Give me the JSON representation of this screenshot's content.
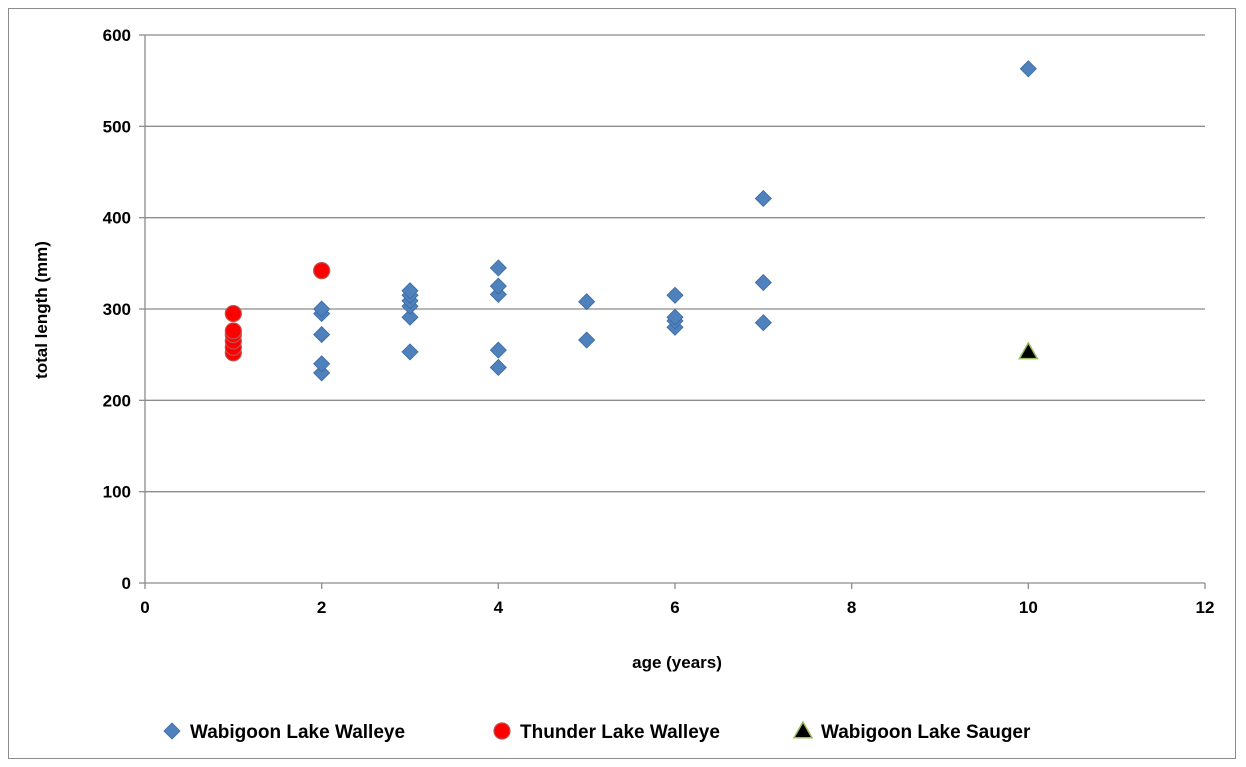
{
  "chart_data": {
    "type": "scatter",
    "title": "",
    "xlabel": "age (years)",
    "ylabel": "total length (mm)",
    "xlim": [
      0,
      12
    ],
    "ylim": [
      0,
      600
    ],
    "xticks": [
      0,
      2,
      4,
      6,
      8,
      10,
      12
    ],
    "yticks": [
      0,
      100,
      200,
      300,
      400,
      500,
      600
    ],
    "grid": "horizontal",
    "legend_position": "bottom",
    "series": [
      {
        "name": "Wabigoon Lake Walleye",
        "marker": "diamond",
        "color": "#4f81bd",
        "points": [
          [
            2,
            230
          ],
          [
            2,
            240
          ],
          [
            2,
            272
          ],
          [
            2,
            295
          ],
          [
            2,
            300
          ],
          [
            3,
            253
          ],
          [
            3,
            291
          ],
          [
            3,
            303
          ],
          [
            3,
            309
          ],
          [
            3,
            315
          ],
          [
            3,
            320
          ],
          [
            4,
            236
          ],
          [
            4,
            255
          ],
          [
            4,
            316
          ],
          [
            4,
            325
          ],
          [
            4,
            345
          ],
          [
            5,
            266
          ],
          [
            5,
            308
          ],
          [
            6,
            280
          ],
          [
            6,
            287
          ],
          [
            6,
            291
          ],
          [
            6,
            315
          ],
          [
            7,
            285
          ],
          [
            7,
            329
          ],
          [
            7,
            421
          ],
          [
            10,
            563
          ]
        ]
      },
      {
        "name": "Thunder Lake Walleye",
        "marker": "circle",
        "color": "#ff0000",
        "points": [
          [
            1,
            252
          ],
          [
            1,
            258
          ],
          [
            1,
            265
          ],
          [
            1,
            272
          ],
          [
            1,
            276
          ],
          [
            1,
            295
          ],
          [
            2,
            342
          ]
        ]
      },
      {
        "name": "Wabigoon Lake Sauger",
        "marker": "triangle",
        "color": "#000000",
        "points": [
          [
            10,
            253
          ]
        ]
      }
    ]
  }
}
